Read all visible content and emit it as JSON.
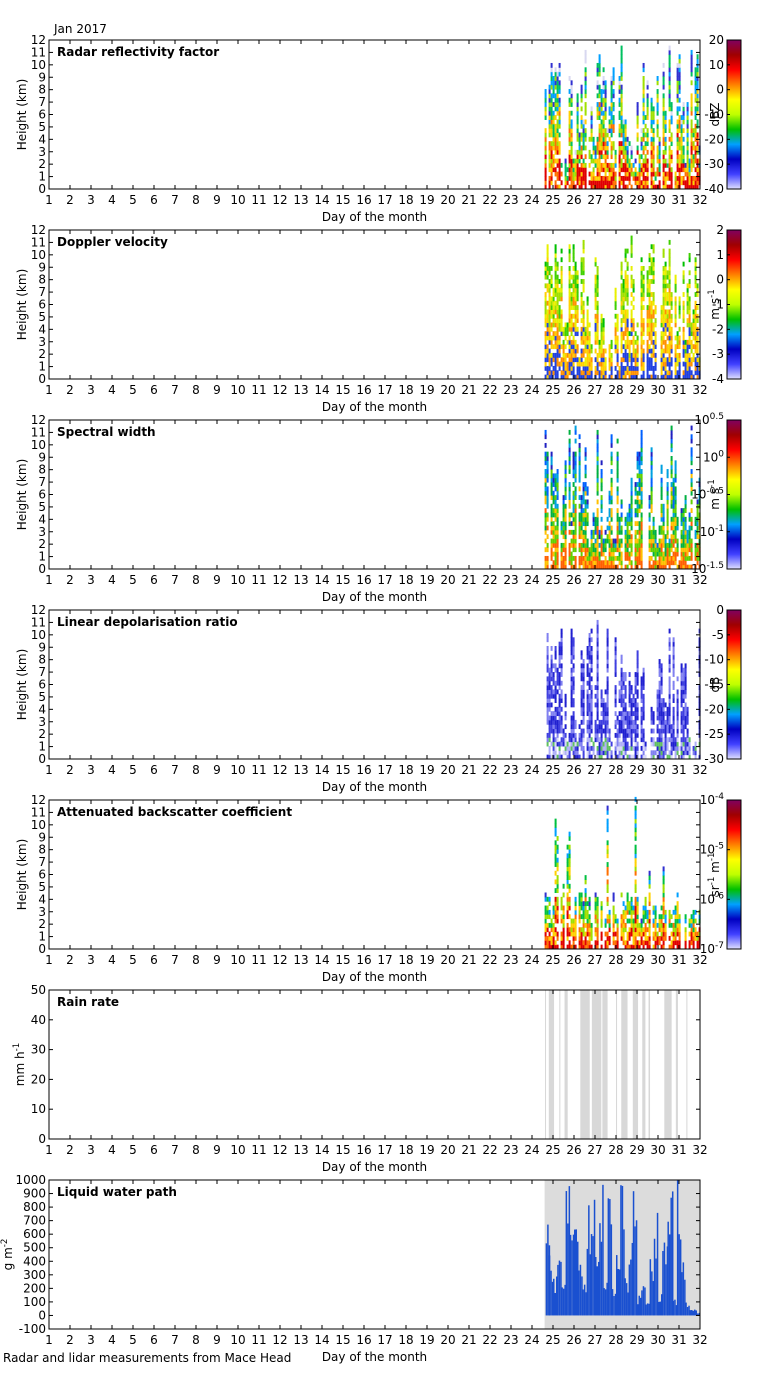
{
  "header": {
    "period": "Jan 2017"
  },
  "footer": {
    "caption": "Radar and lidar measurements from Mace Head"
  },
  "x_axis": {
    "label": "Day of the month",
    "ticks": [
      1,
      2,
      3,
      4,
      5,
      6,
      7,
      8,
      9,
      10,
      11,
      12,
      13,
      14,
      15,
      16,
      17,
      18,
      19,
      20,
      21,
      22,
      23,
      24,
      25,
      26,
      27,
      28,
      29,
      30,
      31,
      32
    ],
    "range": [
      1,
      32
    ],
    "data_start_day": 24.6
  },
  "chart_data": [
    {
      "type": "heatmap",
      "title": "Radar reflectivity factor",
      "ylabel": "Height (km)",
      "ylim": [
        0,
        12
      ],
      "yticks": [
        0,
        1,
        2,
        3,
        4,
        5,
        6,
        7,
        8,
        9,
        10,
        11,
        12
      ],
      "colorbar": {
        "label": "dBZ",
        "ticks": [
          "20",
          "10",
          "0",
          "-10",
          "-20",
          "-30",
          "-40"
        ],
        "range": [
          -40,
          20
        ]
      },
      "data_window_days": [
        24.6,
        32
      ],
      "cloud_top_km": 11.5
    },
    {
      "type": "heatmap",
      "title": "Doppler velocity",
      "ylabel": "Height (km)",
      "ylim": [
        0,
        12
      ],
      "yticks": [
        0,
        1,
        2,
        3,
        4,
        5,
        6,
        7,
        8,
        9,
        10,
        11,
        12
      ],
      "colorbar": {
        "label": "m s",
        "label_sup": "-1",
        "ticks": [
          "2",
          "1",
          "0",
          "-1",
          "-2",
          "-3",
          "-4"
        ],
        "range": [
          -4,
          2
        ]
      },
      "data_window_days": [
        24.6,
        32
      ],
      "cloud_top_km": 11.5
    },
    {
      "type": "heatmap",
      "title": "Spectral width",
      "ylabel": "Height (km)",
      "ylim": [
        0,
        12
      ],
      "yticks": [
        0,
        1,
        2,
        3,
        4,
        5,
        6,
        7,
        8,
        9,
        10,
        11,
        12
      ],
      "colorbar": {
        "label": "m s",
        "label_sup": "-1",
        "scale": "log",
        "ticks": [
          {
            "base": "10",
            "exp": "0.5"
          },
          {
            "base": "10",
            "exp": "0"
          },
          {
            "base": "10",
            "exp": "-0.5"
          },
          {
            "base": "10",
            "exp": "-1"
          },
          {
            "base": "10",
            "exp": "-1.5"
          }
        ],
        "range": [
          -1.5,
          0.5
        ]
      },
      "data_window_days": [
        24.6,
        32
      ],
      "cloud_top_km": 11.5
    },
    {
      "type": "heatmap",
      "title": "Linear depolarisation ratio",
      "ylabel": "Height (km)",
      "ylim": [
        0,
        12
      ],
      "yticks": [
        0,
        1,
        2,
        3,
        4,
        5,
        6,
        7,
        8,
        9,
        10,
        11,
        12
      ],
      "colorbar": {
        "label": "dB",
        "ticks": [
          "0",
          "-5",
          "-10",
          "-15",
          "-20",
          "-25",
          "-30"
        ],
        "range": [
          -30,
          0
        ]
      },
      "data_window_days": [
        24.6,
        32
      ],
      "cloud_top_km": 11
    },
    {
      "type": "heatmap",
      "title": "Attenuated backscatter coefficient",
      "ylabel": "Height (km)",
      "ylim": [
        0,
        12
      ],
      "yticks": [
        0,
        1,
        2,
        3,
        4,
        5,
        6,
        7,
        8,
        9,
        10,
        11,
        12
      ],
      "colorbar": {
        "label": "sr",
        "label_sup": "-1",
        "label_rest": " m",
        "label_sup2": "-1",
        "scale": "log",
        "ticks": [
          {
            "base": "10",
            "exp": "-4"
          },
          {
            "base": "10",
            "exp": "-5"
          },
          {
            "base": "10",
            "exp": "-6"
          },
          {
            "base": "10",
            "exp": "-7"
          }
        ],
        "range": [
          -7,
          -4
        ]
      },
      "data_window_days": [
        24.6,
        32
      ],
      "cloud_top_km": 12
    },
    {
      "type": "bar",
      "title": "Rain rate",
      "ylabel": "mm h",
      "ylabel_sup": "-1",
      "ylim": [
        0,
        50
      ],
      "yticks": [
        0,
        10,
        20,
        30,
        40,
        50
      ],
      "rain_periods_days": [
        [
          24.62,
          24.66
        ],
        [
          24.8,
          25.05
        ],
        [
          25.3,
          25.35
        ],
        [
          25.55,
          25.7
        ],
        [
          26.3,
          26.75
        ],
        [
          26.85,
          27.3
        ],
        [
          27.35,
          27.6
        ],
        [
          28.0,
          28.05
        ],
        [
          28.25,
          28.55
        ],
        [
          28.8,
          29.05
        ],
        [
          29.25,
          29.4
        ],
        [
          29.55,
          29.62
        ],
        [
          30.3,
          30.65
        ],
        [
          30.85,
          30.95
        ],
        [
          31.35,
          31.4
        ]
      ]
    },
    {
      "type": "bar",
      "title": "Liquid water path",
      "ylabel": "g m",
      "ylabel_sup": "-2",
      "ylim": [
        -100,
        1000
      ],
      "yticks": [
        -100,
        0,
        100,
        200,
        300,
        400,
        500,
        600,
        700,
        800,
        900,
        1000
      ],
      "data_window_days": [
        24.6,
        32
      ],
      "lwp_segments": [
        {
          "day": 24.65,
          "value": 1000
        },
        {
          "day": 24.8,
          "value": 450
        },
        {
          "day": 25.0,
          "value": 300
        },
        {
          "day": 25.2,
          "value": 700
        },
        {
          "day": 25.4,
          "value": 250
        },
        {
          "day": 25.6,
          "value": 1000
        },
        {
          "day": 25.8,
          "value": 600
        },
        {
          "day": 26.0,
          "value": 1000
        },
        {
          "day": 26.2,
          "value": 400
        },
        {
          "day": 26.4,
          "value": 250
        },
        {
          "day": 26.6,
          "value": 900
        },
        {
          "day": 26.8,
          "value": 1000
        },
        {
          "day": 27.0,
          "value": 500
        },
        {
          "day": 27.2,
          "value": 1000
        },
        {
          "day": 27.4,
          "value": 350
        },
        {
          "day": 27.6,
          "value": 900
        },
        {
          "day": 27.8,
          "value": 200
        },
        {
          "day": 28.0,
          "value": 500
        },
        {
          "day": 28.2,
          "value": 1000
        },
        {
          "day": 28.4,
          "value": 300
        },
        {
          "day": 28.6,
          "value": 700
        },
        {
          "day": 28.8,
          "value": 1000
        },
        {
          "day": 29.0,
          "value": 150
        },
        {
          "day": 29.2,
          "value": 300
        },
        {
          "day": 29.4,
          "value": 100
        },
        {
          "day": 29.6,
          "value": 450
        },
        {
          "day": 29.8,
          "value": 800
        },
        {
          "day": 30.0,
          "value": 200
        },
        {
          "day": 30.2,
          "value": 600
        },
        {
          "day": 30.45,
          "value": 1000
        },
        {
          "day": 30.7,
          "value": 150
        },
        {
          "day": 30.9,
          "value": 1000
        },
        {
          "day": 31.1,
          "value": 400
        },
        {
          "day": 31.3,
          "value": 100
        },
        {
          "day": 31.5,
          "value": 50
        },
        {
          "day": 31.8,
          "value": 20
        }
      ]
    }
  ]
}
